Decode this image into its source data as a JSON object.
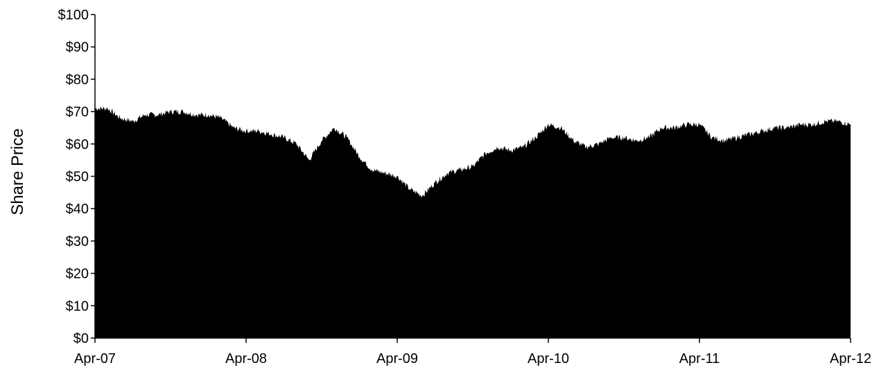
{
  "chart_data": {
    "type": "area",
    "title": "",
    "xlabel": "",
    "ylabel": "Share Price",
    "ylim": [
      0,
      100
    ],
    "y_ticks": [
      "$0",
      "$10",
      "$20",
      "$30",
      "$40",
      "$50",
      "$60",
      "$70",
      "$80",
      "$90",
      "$100"
    ],
    "x_ticks": [
      "Apr-07",
      "Apr-08",
      "Apr-09",
      "Apr-10",
      "Apr-11",
      "Apr-12"
    ],
    "xlim": [
      "2007-04",
      "2012-04"
    ],
    "grid": false,
    "fill_color": "#000000",
    "series": [
      {
        "x": [
          "2007-04",
          "2007-05",
          "2007-06",
          "2007-07",
          "2007-08",
          "2007-09",
          "2007-10",
          "2007-11",
          "2007-12",
          "2008-01",
          "2008-02",
          "2008-03",
          "2008-04",
          "2008-05",
          "2008-06",
          "2008-07",
          "2008-08",
          "2008-09",
          "2008-10",
          "2008-11",
          "2008-12",
          "2009-01",
          "2009-02",
          "2009-03",
          "2009-04",
          "2009-05",
          "2009-06",
          "2009-07",
          "2009-08",
          "2009-09",
          "2009-10",
          "2009-11",
          "2009-12",
          "2010-01",
          "2010-02",
          "2010-03",
          "2010-04",
          "2010-05",
          "2010-06",
          "2010-07",
          "2010-08",
          "2010-09",
          "2010-10",
          "2010-11",
          "2010-12",
          "2011-01",
          "2011-02",
          "2011-03",
          "2011-04",
          "2011-05",
          "2011-06",
          "2011-07",
          "2011-08",
          "2011-09",
          "2011-10",
          "2011-11",
          "2011-12",
          "2012-01",
          "2012-02",
          "2012-03",
          "2012-04"
        ],
        "values": [
          71,
          71,
          68,
          67,
          69,
          69,
          70,
          70,
          69,
          69,
          68,
          65,
          64,
          64,
          63,
          62,
          60,
          55,
          61,
          65,
          62,
          56,
          52,
          51,
          50,
          46,
          44,
          48,
          51,
          52,
          53,
          57,
          59,
          58,
          59,
          62,
          66,
          65,
          61,
          59,
          60,
          62,
          62,
          61,
          62,
          65,
          65,
          66,
          66,
          62,
          61,
          62,
          63,
          64,
          65,
          65,
          66,
          66,
          67,
          67,
          66
        ]
      }
    ]
  }
}
